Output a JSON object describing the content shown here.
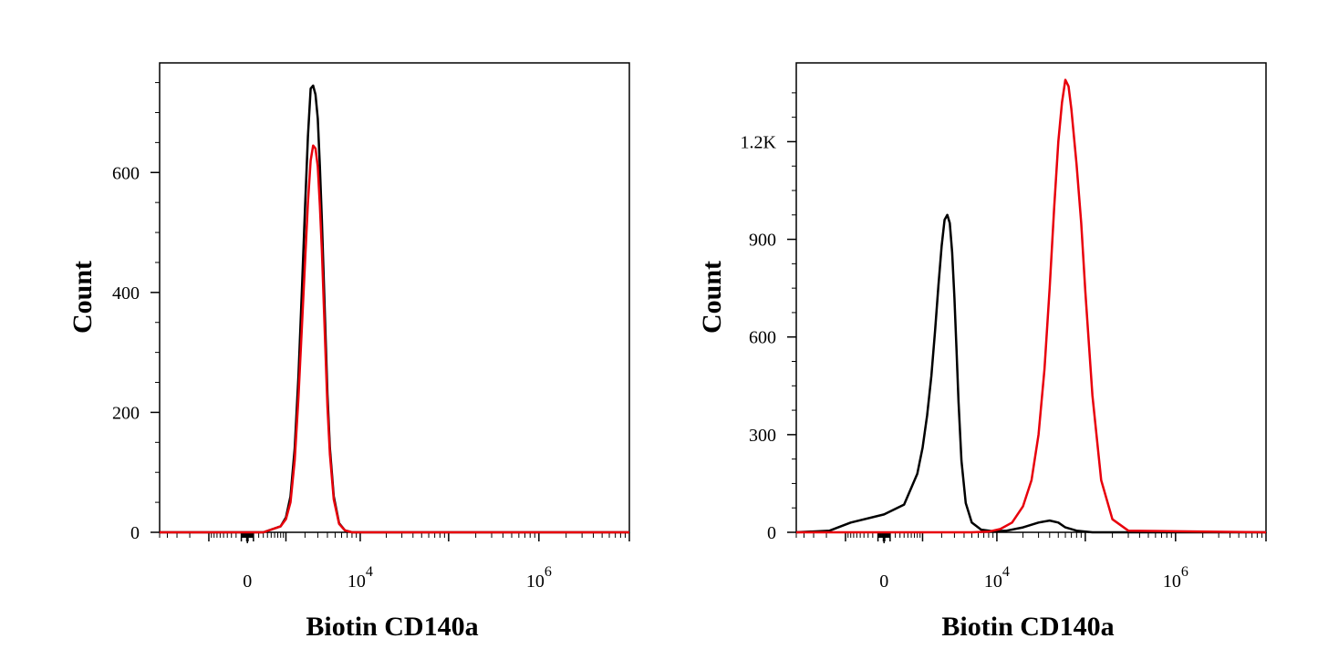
{
  "chart_data": [
    {
      "type": "line",
      "title": "",
      "xlabel": "Biotin CD140a",
      "ylabel": "Count",
      "x_scale": "biexponential",
      "xlim": [
        -5000,
        10000000
      ],
      "ylim": [
        0,
        760
      ],
      "x_ticks": [
        {
          "value": 0,
          "base": "0",
          "exp": ""
        },
        {
          "value": 10000,
          "base": "10",
          "exp": "4"
        },
        {
          "value": 1000000,
          "base": "10",
          "exp": "6"
        }
      ],
      "y_ticks": [
        {
          "value": 0,
          "label": "0"
        },
        {
          "value": 200,
          "label": "200"
        },
        {
          "value": 400,
          "label": "400"
        },
        {
          "value": 600,
          "label": "600"
        }
      ],
      "legend": "none",
      "grid": false,
      "series": [
        {
          "color": "#000000",
          "x": [
            -5000,
            300,
            800,
            1000,
            1200,
            1400,
            1600,
            1800,
            2000,
            2200,
            2400,
            2600,
            2800,
            3000,
            3200,
            3400,
            3600,
            3800,
            4000,
            4300,
            4800,
            5600,
            6600,
            8000,
            10000,
            10000000
          ],
          "y": [
            0,
            0,
            10,
            25,
            60,
            140,
            260,
            400,
            540,
            660,
            740,
            745,
            730,
            690,
            610,
            520,
            420,
            320,
            230,
            140,
            60,
            15,
            3,
            0,
            0,
            0
          ]
        },
        {
          "color": "#e8000b",
          "x": [
            -5000,
            300,
            800,
            1000,
            1200,
            1400,
            1600,
            1800,
            2000,
            2200,
            2400,
            2600,
            2800,
            3000,
            3200,
            3400,
            3600,
            3800,
            4000,
            4300,
            4800,
            5600,
            6600,
            8000,
            10000,
            10000000
          ],
          "y": [
            0,
            0,
            10,
            22,
            50,
            120,
            225,
            340,
            450,
            550,
            620,
            645,
            640,
            610,
            545,
            470,
            380,
            290,
            210,
            130,
            55,
            14,
            3,
            0,
            0,
            0
          ]
        }
      ]
    },
    {
      "type": "line",
      "title": "",
      "xlabel": "Biotin CD140a",
      "ylabel": "Count",
      "x_scale": "biexponential",
      "xlim": [
        -5000,
        10000000
      ],
      "ylim": [
        0,
        1400
      ],
      "x_ticks": [
        {
          "value": 0,
          "base": "0",
          "exp": ""
        },
        {
          "value": 10000,
          "base": "10",
          "exp": "4"
        },
        {
          "value": 1000000,
          "base": "10",
          "exp": "6"
        }
      ],
      "y_ticks": [
        {
          "value": 0,
          "label": "0"
        },
        {
          "value": 300,
          "label": "300"
        },
        {
          "value": 600,
          "label": "600"
        },
        {
          "value": 900,
          "label": "900"
        },
        {
          "value": 1200,
          "label": "1.2K"
        }
      ],
      "legend": "none",
      "grid": false,
      "series": [
        {
          "color": "#000000",
          "x": [
            -5000,
            -1800,
            -800,
            0,
            400,
            800,
            1000,
            1200,
            1400,
            1600,
            1800,
            2000,
            2200,
            2400,
            2600,
            2800,
            3000,
            3200,
            3400,
            3700,
            4200,
            5000,
            6500,
            9000,
            13000,
            20000,
            30000,
            40000,
            50000,
            60000,
            80000,
            120000,
            10000000
          ],
          "y": [
            0,
            5,
            30,
            55,
            85,
            180,
            260,
            360,
            480,
            620,
            760,
            880,
            960,
            975,
            950,
            860,
            720,
            560,
            400,
            220,
            90,
            30,
            8,
            3,
            5,
            15,
            30,
            36,
            30,
            15,
            5,
            0,
            0
          ]
        },
        {
          "color": "#e8000b",
          "x": [
            -5000,
            5000,
            8000,
            11000,
            15000,
            20000,
            25000,
            30000,
            35000,
            40000,
            45000,
            50000,
            55000,
            60000,
            65000,
            70000,
            80000,
            90000,
            100000,
            120000,
            150000,
            200000,
            300000,
            10000000
          ],
          "y": [
            0,
            0,
            2,
            10,
            30,
            80,
            160,
            300,
            500,
            750,
            1000,
            1200,
            1320,
            1390,
            1370,
            1300,
            1130,
            950,
            740,
            420,
            160,
            40,
            5,
            0
          ]
        }
      ]
    }
  ]
}
